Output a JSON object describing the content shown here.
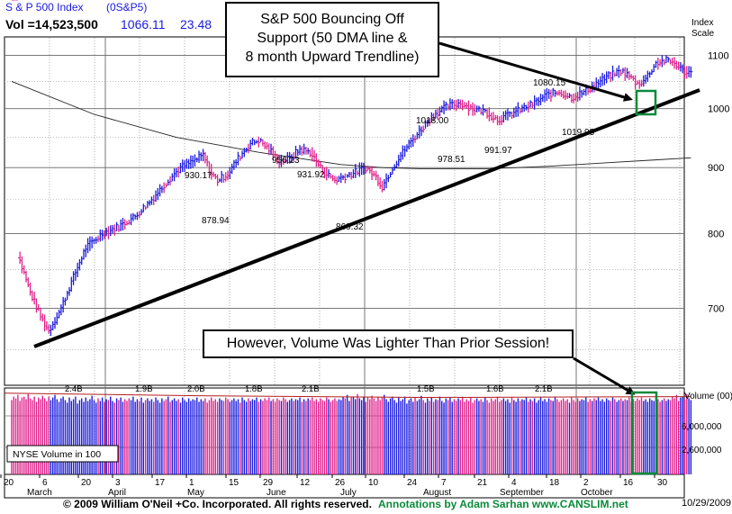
{
  "header": {
    "title": "S & P 500 Index",
    "symbol": "(0S&P5)",
    "volume": "Vol =14,523,500",
    "price": "1066.11",
    "change": "23.48"
  },
  "annotations": {
    "box1": [
      "S&P 500 Bouncing Off",
      "Support (50 DMA line &",
      "8 month Upward Trendline)"
    ],
    "box2": "However, Volume Was Lighter Than Prior Session!"
  },
  "footer": {
    "copyright": "© 2009 William O'Neil +Co. Incorporated. All rights reserved.",
    "credit": "Annotations by Adam Sarhan www.CANSLIM.net",
    "date": "10/29/2009"
  },
  "colors": {
    "up": "#1a1adc",
    "down": "#e0208a",
    "ma10": "#19b319",
    "ma50": "#b31e1e",
    "ma20": "#c94dc9",
    "ma200": "#222222",
    "highlight": "#0a8a3a",
    "footer_text": "#0a8a3a"
  },
  "chart_data": {
    "type": "ohlc-bar",
    "price_axis": {
      "title": [
        "Index",
        "Scale"
      ],
      "ticks": [
        700,
        800,
        900,
        1000,
        1100
      ],
      "ylim": [
        610,
        1135
      ],
      "scale": "log"
    },
    "volume_axis": {
      "title": "Volume (00)",
      "ticks": [
        "6,000,000",
        "2,600,000"
      ]
    },
    "x_axis": {
      "day_labels": [
        "20",
        "6",
        "20",
        "3",
        "17",
        "1",
        "15",
        "29",
        "12",
        "26",
        "10",
        "24",
        "7",
        "21",
        "4",
        "18",
        "2",
        "16",
        "30"
      ],
      "months": [
        "March",
        "April",
        "May",
        "June",
        "July",
        "August",
        "September",
        "October"
      ]
    },
    "price_labels": [
      {
        "text": "930.17"
      },
      {
        "text": "878.94"
      },
      {
        "text": "956.23"
      },
      {
        "text": "931.92"
      },
      {
        "text": "869.32"
      },
      {
        "text": "1018.00"
      },
      {
        "text": "978.51"
      },
      {
        "text": "991.97"
      },
      {
        "text": "1080.15"
      },
      {
        "text": "1019.95"
      }
    ],
    "volume_labels": [
      "2.4B",
      "1.9B",
      "2.0B",
      "1.8B",
      "2.1B",
      "1.5B",
      "1.6B",
      "2.1B"
    ],
    "legend_box": "NYSE Volume in 100",
    "close_path": [
      [
        3,
        770
      ],
      [
        9,
        720
      ],
      [
        14,
        690
      ],
      [
        18,
        672
      ],
      [
        24,
        700
      ],
      [
        30,
        740
      ],
      [
        36,
        780
      ],
      [
        44,
        800
      ],
      [
        52,
        810
      ],
      [
        60,
        825
      ],
      [
        68,
        850
      ],
      [
        76,
        880
      ],
      [
        82,
        900
      ],
      [
        88,
        910
      ],
      [
        93,
        920
      ],
      [
        97,
        890
      ],
      [
        100,
        880
      ],
      [
        105,
        890
      ],
      [
        110,
        915
      ],
      [
        116,
        940
      ],
      [
        120,
        945
      ],
      [
        125,
        930
      ],
      [
        130,
        910
      ],
      [
        135,
        915
      ],
      [
        140,
        930
      ],
      [
        145,
        925
      ],
      [
        151,
        895
      ],
      [
        157,
        880
      ],
      [
        165,
        890
      ],
      [
        172,
        900
      ],
      [
        177,
        885
      ],
      [
        180,
        870
      ],
      [
        185,
        900
      ],
      [
        191,
        930
      ],
      [
        198,
        960
      ],
      [
        205,
        990
      ],
      [
        212,
        1005
      ],
      [
        218,
        1010
      ],
      [
        224,
        1000
      ],
      [
        230,
        995
      ],
      [
        236,
        980
      ],
      [
        242,
        990
      ],
      [
        248,
        1000
      ],
      [
        254,
        1010
      ],
      [
        260,
        1025
      ],
      [
        266,
        1030
      ],
      [
        272,
        1020
      ],
      [
        278,
        1030
      ],
      [
        284,
        1045
      ],
      [
        290,
        1060
      ],
      [
        296,
        1070
      ],
      [
        300,
        1060
      ],
      [
        304,
        1045
      ],
      [
        308,
        1055
      ],
      [
        313,
        1085
      ],
      [
        318,
        1090
      ],
      [
        322,
        1085
      ],
      [
        326,
        1070
      ],
      [
        330,
        1066
      ]
    ],
    "volume_values": [
      8.6,
      9.0,
      8.8,
      9.2,
      8.5,
      8.9,
      9.0,
      8.7,
      9.3,
      8.8,
      8.6,
      9.0,
      8.4,
      8.9,
      8.7,
      9.1,
      8.8,
      8.5,
      9.0,
      8.6,
      8.9,
      9.2,
      8.7,
      8.4,
      8.8,
      9.0,
      8.6,
      8.3,
      8.9,
      8.5,
      8.7,
      9.0,
      8.2,
      8.6,
      8.8,
      8.4,
      8.9,
      8.5,
      8.7,
      9.1,
      8.6,
      8.3,
      8.8,
      8.5,
      8.9,
      8.4,
      8.7,
      8.6,
      9.0,
      8.5,
      8.3,
      8.8,
      8.6,
      8.9,
      8.4,
      8.7,
      8.5,
      8.8,
      8.6,
      9.0,
      8.4,
      8.7,
      8.5,
      8.9,
      8.3,
      8.6,
      8.8,
      8.5,
      8.7,
      8.4,
      8.9,
      8.6,
      8.3,
      8.8,
      8.5,
      8.7,
      9.0,
      8.4,
      8.6,
      8.8,
      8.5,
      8.7,
      8.3,
      8.9,
      8.6,
      8.4,
      8.8,
      8.5,
      8.7,
      8.6,
      8.9,
      8.4,
      8.7,
      8.5,
      8.8,
      8.3,
      8.6,
      8.9,
      8.5,
      8.7,
      8.4,
      8.8,
      8.6,
      8.5,
      8.9,
      8.7,
      8.4,
      8.6,
      8.8,
      8.5,
      8.7,
      8.3,
      8.9,
      8.6,
      8.4,
      8.8,
      8.5,
      8.7,
      8.6,
      8.9,
      8.4,
      8.7,
      8.5,
      8.8,
      8.6,
      8.9,
      8.5,
      8.7,
      8.4,
      8.8,
      8.6,
      8.5,
      8.9,
      8.7,
      8.4,
      8.6,
      8.8,
      8.5,
      8.7,
      8.6,
      8.9,
      8.4,
      8.7,
      8.5,
      8.8,
      8.6,
      8.9,
      8.5,
      8.7,
      8.4,
      8.8,
      8.6,
      8.5,
      8.9,
      8.7,
      8.4,
      8.6,
      8.8,
      8.5,
      8.7
    ]
  }
}
